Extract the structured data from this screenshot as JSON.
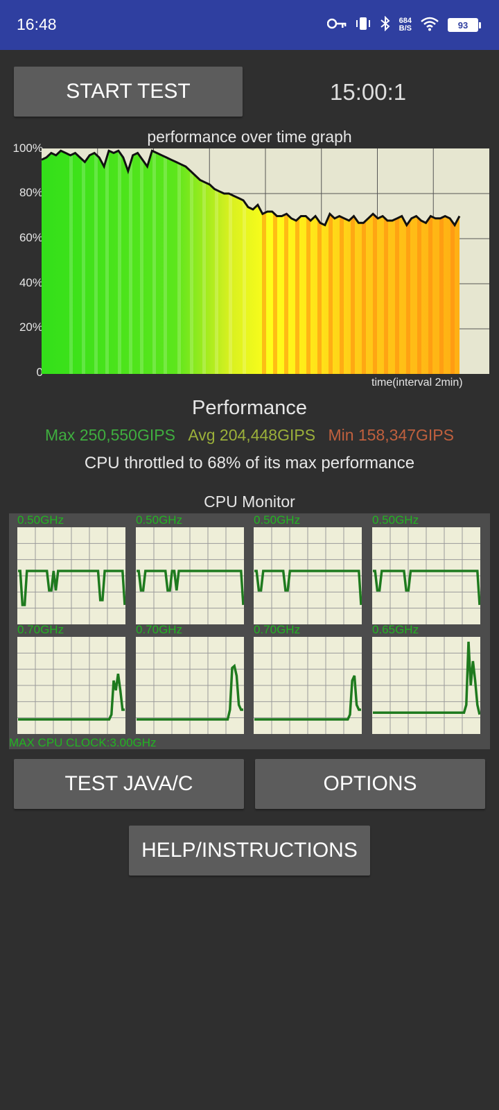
{
  "status_bar": {
    "time": "16:48",
    "net_speed_value": "684",
    "net_speed_unit": "B/S",
    "battery": "93",
    "icons": [
      "key-icon",
      "vibrate-icon",
      "bluetooth-icon",
      "wifi-icon",
      "battery-icon"
    ]
  },
  "controls": {
    "start_test": "START TEST",
    "timer": "15:00:1",
    "test_java_c": "TEST JAVA/C",
    "options": "OPTIONS",
    "help": "HELP/INSTRUCTIONS"
  },
  "perf_graph": {
    "title": "performance over time graph",
    "y_ticks": [
      "100%",
      "80%",
      "60%",
      "40%",
      "20%",
      "0"
    ],
    "x_label": "time(interval 2min)"
  },
  "performance": {
    "title": "Performance",
    "max": "Max 250,550GIPS",
    "avg": "Avg 204,448GIPS",
    "min": "Min 158,347GIPS",
    "throttle_text": "CPU throttled to 68% of its max performance",
    "colors": {
      "max": "#3fae3f",
      "avg": "#9bb03a",
      "min": "#c0603e"
    }
  },
  "cpu_monitor": {
    "title": "CPU Monitor",
    "max_clock": "MAX CPU CLOCK:3.00GHz",
    "cores": [
      {
        "freq": "0.50GHz",
        "profile": [
          0.55,
          0.55,
          0.2,
          0.2,
          0.55,
          0.55,
          0.55,
          0.55,
          0.55,
          0.55,
          0.55,
          0.55,
          0.55,
          0.55,
          0.35,
          0.35,
          0.55,
          0.35,
          0.55,
          0.55,
          0.55,
          0.55,
          0.55,
          0.55,
          0.55,
          0.55,
          0.55,
          0.55,
          0.55,
          0.55,
          0.55,
          0.55,
          0.55,
          0.55,
          0.55,
          0.55,
          0.55,
          0.25,
          0.25,
          0.55,
          0.55,
          0.55,
          0.55,
          0.55,
          0.55,
          0.55,
          0.55,
          0.55,
          0.2
        ]
      },
      {
        "freq": "0.50GHz",
        "profile": [
          0.55,
          0.55,
          0.35,
          0.35,
          0.55,
          0.55,
          0.55,
          0.55,
          0.55,
          0.55,
          0.55,
          0.55,
          0.55,
          0.55,
          0.35,
          0.35,
          0.55,
          0.55,
          0.35,
          0.55,
          0.55,
          0.55,
          0.55,
          0.55,
          0.55,
          0.55,
          0.55,
          0.55,
          0.55,
          0.55,
          0.55,
          0.55,
          0.55,
          0.55,
          0.55,
          0.55,
          0.55,
          0.55,
          0.55,
          0.55,
          0.55,
          0.55,
          0.55,
          0.55,
          0.55,
          0.55,
          0.55,
          0.55,
          0.2
        ]
      },
      {
        "freq": "0.50GHz",
        "profile": [
          0.55,
          0.55,
          0.35,
          0.35,
          0.55,
          0.55,
          0.55,
          0.55,
          0.55,
          0.55,
          0.55,
          0.55,
          0.55,
          0.55,
          0.35,
          0.35,
          0.55,
          0.55,
          0.55,
          0.55,
          0.55,
          0.55,
          0.55,
          0.55,
          0.55,
          0.55,
          0.55,
          0.55,
          0.55,
          0.55,
          0.55,
          0.55,
          0.55,
          0.55,
          0.55,
          0.55,
          0.55,
          0.55,
          0.55,
          0.55,
          0.55,
          0.55,
          0.55,
          0.55,
          0.55,
          0.55,
          0.55,
          0.55,
          0.2
        ]
      },
      {
        "freq": "0.50GHz",
        "profile": [
          0.55,
          0.55,
          0.35,
          0.35,
          0.55,
          0.55,
          0.55,
          0.55,
          0.55,
          0.55,
          0.55,
          0.55,
          0.55,
          0.55,
          0.55,
          0.35,
          0.35,
          0.55,
          0.55,
          0.55,
          0.55,
          0.55,
          0.55,
          0.55,
          0.55,
          0.55,
          0.55,
          0.55,
          0.55,
          0.55,
          0.55,
          0.55,
          0.55,
          0.55,
          0.55,
          0.55,
          0.55,
          0.55,
          0.55,
          0.55,
          0.55,
          0.55,
          0.55,
          0.55,
          0.55,
          0.55,
          0.55,
          0.55,
          0.2
        ]
      },
      {
        "freq": "0.70GHz",
        "profile": [
          0.15,
          0.15,
          0.15,
          0.15,
          0.15,
          0.15,
          0.15,
          0.15,
          0.15,
          0.15,
          0.15,
          0.15,
          0.15,
          0.15,
          0.15,
          0.15,
          0.15,
          0.15,
          0.15,
          0.15,
          0.15,
          0.15,
          0.15,
          0.15,
          0.15,
          0.15,
          0.15,
          0.15,
          0.15,
          0.15,
          0.15,
          0.15,
          0.15,
          0.15,
          0.15,
          0.15,
          0.15,
          0.15,
          0.15,
          0.15,
          0.15,
          0.15,
          0.2,
          0.55,
          0.45,
          0.62,
          0.45,
          0.25,
          0.25
        ]
      },
      {
        "freq": "0.70GHz",
        "profile": [
          0.15,
          0.15,
          0.15,
          0.15,
          0.15,
          0.15,
          0.15,
          0.15,
          0.15,
          0.15,
          0.15,
          0.15,
          0.15,
          0.15,
          0.15,
          0.15,
          0.15,
          0.15,
          0.15,
          0.15,
          0.15,
          0.15,
          0.15,
          0.15,
          0.15,
          0.15,
          0.15,
          0.15,
          0.15,
          0.15,
          0.15,
          0.15,
          0.15,
          0.15,
          0.15,
          0.15,
          0.15,
          0.15,
          0.15,
          0.15,
          0.15,
          0.15,
          0.25,
          0.68,
          0.7,
          0.6,
          0.3,
          0.25,
          0.25
        ]
      },
      {
        "freq": "0.70GHz",
        "profile": [
          0.15,
          0.15,
          0.15,
          0.15,
          0.15,
          0.15,
          0.15,
          0.15,
          0.15,
          0.15,
          0.15,
          0.15,
          0.15,
          0.15,
          0.15,
          0.15,
          0.15,
          0.15,
          0.15,
          0.15,
          0.15,
          0.15,
          0.15,
          0.15,
          0.15,
          0.15,
          0.15,
          0.15,
          0.15,
          0.15,
          0.15,
          0.15,
          0.15,
          0.15,
          0.15,
          0.15,
          0.15,
          0.15,
          0.15,
          0.15,
          0.15,
          0.15,
          0.15,
          0.2,
          0.55,
          0.6,
          0.3,
          0.25,
          0.25
        ]
      },
      {
        "freq": "0.65GHz",
        "profile": [
          0.22,
          0.22,
          0.22,
          0.22,
          0.22,
          0.22,
          0.22,
          0.22,
          0.22,
          0.22,
          0.22,
          0.22,
          0.22,
          0.22,
          0.22,
          0.22,
          0.22,
          0.22,
          0.22,
          0.22,
          0.22,
          0.22,
          0.22,
          0.22,
          0.22,
          0.22,
          0.22,
          0.22,
          0.22,
          0.22,
          0.22,
          0.22,
          0.22,
          0.22,
          0.22,
          0.22,
          0.22,
          0.22,
          0.22,
          0.22,
          0.22,
          0.22,
          0.3,
          0.95,
          0.5,
          0.75,
          0.55,
          0.3,
          0.2
        ]
      }
    ]
  },
  "chart_data": {
    "type": "line",
    "title": "performance over time graph",
    "xlabel": "time(interval 2min)",
    "ylabel": "",
    "ylim": [
      0,
      100
    ],
    "y_ticks": [
      "0",
      "20%",
      "40%",
      "60%",
      "80%",
      "100%"
    ],
    "grid": true,
    "series": [
      {
        "values": [
          95,
          96,
          98,
          97,
          99,
          98,
          97,
          98,
          96,
          94,
          97,
          98,
          96,
          92,
          99,
          98,
          99,
          96,
          90,
          97,
          98,
          95,
          92,
          99,
          98,
          97,
          96,
          95,
          94,
          93,
          92,
          90,
          88,
          86,
          85,
          84,
          82,
          81,
          80,
          80,
          79,
          78,
          77,
          74,
          73,
          75,
          71,
          72,
          72,
          70,
          70,
          71,
          69,
          68,
          70,
          70,
          68,
          70,
          67,
          66,
          71,
          69,
          70,
          69,
          68,
          70,
          67,
          67,
          69,
          71,
          69,
          70,
          68,
          68,
          69,
          70,
          66,
          69,
          70,
          68,
          67,
          70,
          69,
          69,
          70,
          69,
          66,
          70
        ]
      }
    ]
  }
}
